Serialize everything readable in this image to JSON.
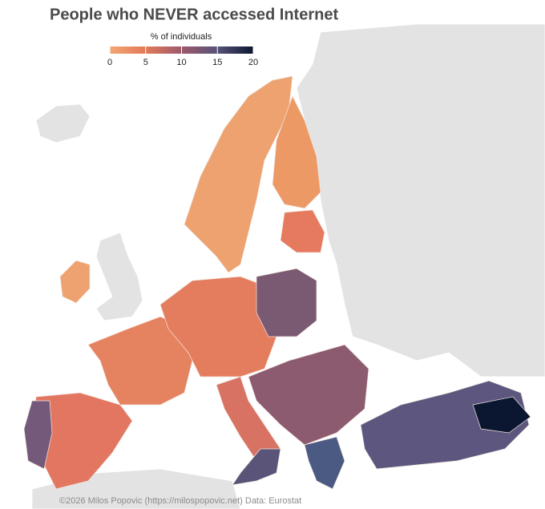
{
  "title": "People who NEVER accessed Internet",
  "legend": {
    "title": "% of individuals",
    "range": [
      0,
      20
    ],
    "ticks": [
      0,
      5,
      10,
      15,
      20
    ],
    "colors": [
      "#f4a672",
      "#e37a5a",
      "#9c5a6b",
      "#585379",
      "#0b1730"
    ]
  },
  "caption": "©2026 Milos Popovic (https://milospopovic.net) Data: Eurostat"
}
